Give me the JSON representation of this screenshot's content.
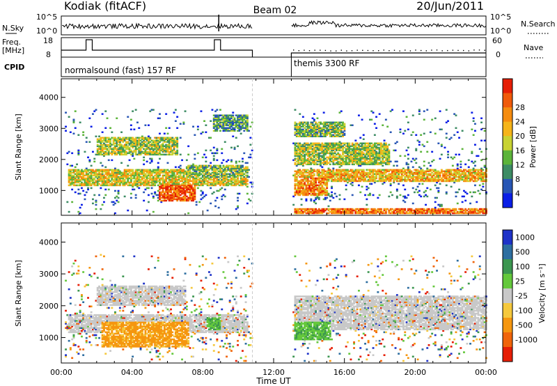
{
  "header": {
    "radar": "Kodiak (fitACF)",
    "beam": "Beam 02",
    "date": "20/Jun/2011"
  },
  "status_panels": {
    "nsky_label": "N.Sky",
    "nsky_ticks": [
      "10^5",
      "10^0"
    ],
    "nsearch_label": "N.Search",
    "freq_label": "Freq.",
    "freq_unit": "[MHz]",
    "freq_ticks": [
      "18",
      "8"
    ],
    "nave_ticks": [
      "60",
      "0"
    ],
    "nave_label": "Nave",
    "cpid_label": "CPID",
    "cpid_programs": [
      {
        "name": "normalsound (fast) 157 RF",
        "start_hour": 0,
        "end_hour": 10.8
      },
      {
        "name": "themis 3300 RF",
        "start_hour": 13.0,
        "end_hour": 24
      }
    ]
  },
  "chart_data": [
    {
      "type": "heatmap",
      "panel": "power",
      "ylabel": "Slant Range [km]",
      "xlabel": "Time UT",
      "xlim": [
        0,
        24
      ],
      "ylim": [
        200,
        4600
      ],
      "x_ticks": [
        "00:00",
        "04:00",
        "08:00",
        "12:00",
        "16:00",
        "20:00",
        "00:00"
      ],
      "y_ticks": [
        1000,
        2000,
        3000,
        4000
      ],
      "data_gap_hours": [
        10.8,
        13.0
      ],
      "colorbar": {
        "label": "Power [dB]",
        "ticks": [
          "4",
          "8",
          "12",
          "16",
          "20",
          "24",
          "28"
        ],
        "colors": [
          "#0a1ee6",
          "#2856b4",
          "#3d8c64",
          "#5cb43a",
          "#c8d232",
          "#f5b419",
          "#f58c0f",
          "#f05a0a",
          "#e61e05"
        ]
      },
      "echo_bands": [
        {
          "t0": 0.3,
          "t1": 10.5,
          "r0": 1150,
          "r1": 1650,
          "level": 0.55
        },
        {
          "t0": 2.0,
          "t1": 6.5,
          "r0": 2100,
          "r1": 2700,
          "level": 0.45
        },
        {
          "t0": 5.5,
          "t1": 7.5,
          "r0": 650,
          "r1": 1150,
          "level": 0.9
        },
        {
          "t0": 7.0,
          "t1": 10.5,
          "r0": 1400,
          "r1": 1800,
          "level": 0.4
        },
        {
          "t0": 8.5,
          "t1": 10.5,
          "r0": 2900,
          "r1": 3400,
          "level": 0.3
        },
        {
          "t0": 13.1,
          "t1": 24,
          "r0": 1250,
          "r1": 1650,
          "level": 0.65
        },
        {
          "t0": 13.1,
          "t1": 15.0,
          "r0": 800,
          "r1": 1400,
          "level": 0.75
        },
        {
          "t0": 13.1,
          "t1": 18.5,
          "r0": 1800,
          "r1": 2500,
          "level": 0.45
        },
        {
          "t0": 13.1,
          "t1": 24,
          "r0": 250,
          "r1": 400,
          "level": 0.8
        },
        {
          "t0": 13.1,
          "t1": 16.0,
          "r0": 2700,
          "r1": 3200,
          "level": 0.4
        }
      ]
    },
    {
      "type": "heatmap",
      "panel": "velocity",
      "ylabel": "Slant Range [km]",
      "xlabel": "Time UT",
      "xlim": [
        0,
        24
      ],
      "ylim": [
        200,
        4600
      ],
      "x_ticks": [
        "00:00",
        "04:00",
        "08:00",
        "12:00",
        "16:00",
        "20:00",
        "00:00"
      ],
      "y_ticks": [
        1000,
        2000,
        3000,
        4000
      ],
      "data_gap_hours": [
        10.8,
        13.0
      ],
      "colorbar": {
        "label": "Velocity [m s⁻¹]",
        "ticks": [
          "1000",
          "500",
          "100",
          "25",
          "-25",
          "-100",
          "-500",
          "-1000"
        ],
        "colors": [
          "#1e32c8",
          "#2d6ea0",
          "#3c9650",
          "#64c83c",
          "#c8c8c8",
          "#f5c83c",
          "#f5960f",
          "#f0640a",
          "#e61e05"
        ]
      },
      "echo_bands": [
        {
          "t0": 0.3,
          "t1": 10.5,
          "r0": 1150,
          "r1": 1700,
          "kind": "gray"
        },
        {
          "t0": 2.0,
          "t1": 7.0,
          "r0": 2000,
          "r1": 2600,
          "kind": "gray"
        },
        {
          "t0": 2.2,
          "t1": 7.2,
          "r0": 700,
          "r1": 1500,
          "kind": "orange"
        },
        {
          "t0": 8.2,
          "t1": 9.0,
          "r0": 1200,
          "r1": 1600,
          "kind": "green"
        },
        {
          "t0": 13.1,
          "t1": 24,
          "r0": 1200,
          "r1": 2300,
          "kind": "gray"
        },
        {
          "t0": 13.1,
          "t1": 15.2,
          "r0": 900,
          "r1": 1500,
          "kind": "green"
        }
      ]
    }
  ]
}
